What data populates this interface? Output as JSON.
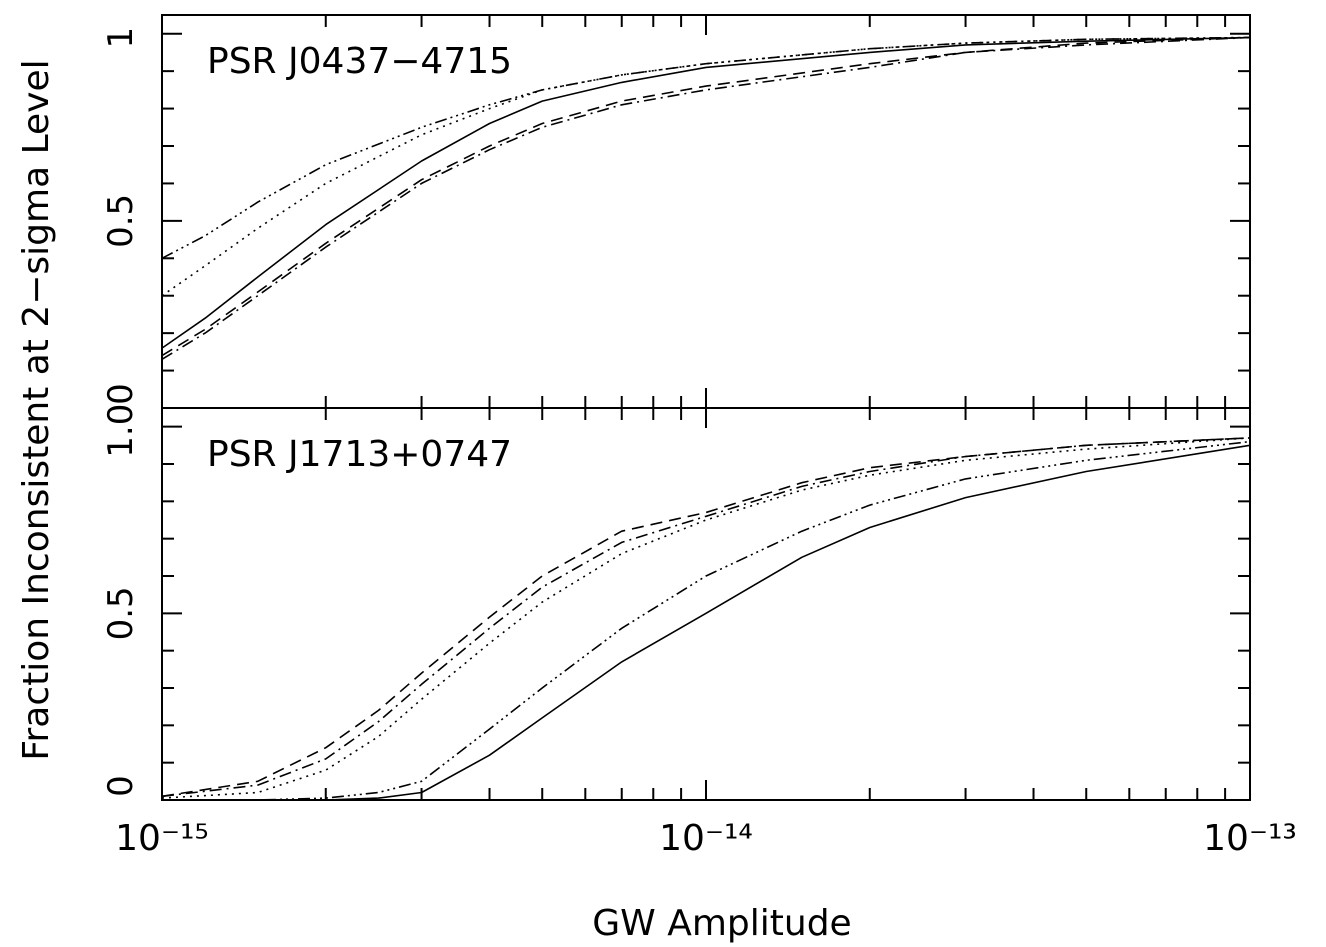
{
  "figure": {
    "xlabel": "GW Amplitude",
    "ylabel": "Fraction Inconsistent at 2−sigma Level"
  },
  "chart_data": [
    {
      "type": "line",
      "title": "PSR J0437−4715",
      "xscale": "log",
      "xlim": [
        1e-15,
        1e-13
      ],
      "ylim": [
        0,
        1.05
      ],
      "x_tick_labels": [
        "10⁻¹⁵",
        "10⁻¹⁴",
        "10⁻¹³"
      ],
      "y_tick_labels": [
        "0",
        "0.5",
        "1"
      ],
      "y_tick_values": [
        0,
        0.5,
        1
      ],
      "grid": false,
      "x": [
        1e-15,
        1.2e-15,
        1.5e-15,
        2e-15,
        3e-15,
        4e-15,
        5e-15,
        7e-15,
        1e-14,
        2e-14,
        3e-14,
        5e-14,
        1e-13
      ],
      "series": [
        {
          "style": "solid",
          "values": [
            0.16,
            0.24,
            0.35,
            0.49,
            0.66,
            0.76,
            0.82,
            0.87,
            0.91,
            0.95,
            0.97,
            0.98,
            0.99
          ]
        },
        {
          "style": "dotted",
          "values": [
            0.3,
            0.38,
            0.48,
            0.6,
            0.73,
            0.8,
            0.85,
            0.89,
            0.92,
            0.96,
            0.975,
            0.985,
            0.99
          ]
        },
        {
          "style": "dashed",
          "values": [
            0.14,
            0.21,
            0.31,
            0.44,
            0.61,
            0.7,
            0.76,
            0.82,
            0.86,
            0.92,
            0.95,
            0.975,
            0.99
          ]
        },
        {
          "style": "dashdot",
          "values": [
            0.13,
            0.2,
            0.3,
            0.43,
            0.6,
            0.69,
            0.75,
            0.81,
            0.85,
            0.91,
            0.95,
            0.97,
            0.99
          ]
        },
        {
          "style": "dashdot3",
          "values": [
            0.4,
            0.46,
            0.55,
            0.65,
            0.75,
            0.81,
            0.85,
            0.89,
            0.92,
            0.96,
            0.975,
            0.985,
            0.99
          ]
        }
      ]
    },
    {
      "type": "line",
      "title": "PSR J1713+0747",
      "xscale": "log",
      "xlim": [
        1e-15,
        1e-13
      ],
      "ylim": [
        0,
        1.05
      ],
      "x_tick_labels": [
        "10⁻¹⁵",
        "10⁻¹⁴",
        "10⁻¹³"
      ],
      "y_tick_labels": [
        "0",
        "0.5",
        "1.0"
      ],
      "y_tick_values": [
        0,
        0.5,
        1
      ],
      "grid": false,
      "x": [
        1e-15,
        1.5e-15,
        2e-15,
        2.5e-15,
        3e-15,
        4e-15,
        5e-15,
        7e-15,
        1e-14,
        1.5e-14,
        2e-14,
        3e-14,
        5e-14,
        1e-13
      ],
      "series": [
        {
          "style": "solid",
          "values": [
            0.0,
            0.0,
            0.0,
            0.005,
            0.02,
            0.12,
            0.22,
            0.37,
            0.5,
            0.65,
            0.73,
            0.81,
            0.88,
            0.95
          ]
        },
        {
          "style": "dotted",
          "values": [
            0.005,
            0.02,
            0.08,
            0.17,
            0.27,
            0.42,
            0.53,
            0.66,
            0.75,
            0.83,
            0.87,
            0.91,
            0.94,
            0.97
          ]
        },
        {
          "style": "dashed",
          "values": [
            0.01,
            0.05,
            0.14,
            0.24,
            0.34,
            0.49,
            0.6,
            0.72,
            0.77,
            0.85,
            0.89,
            0.92,
            0.95,
            0.97
          ]
        },
        {
          "style": "dashdot",
          "values": [
            0.01,
            0.04,
            0.11,
            0.21,
            0.31,
            0.46,
            0.57,
            0.69,
            0.76,
            0.84,
            0.88,
            0.92,
            0.95,
            0.97
          ]
        },
        {
          "style": "dashdot3",
          "values": [
            0.0,
            0.0,
            0.005,
            0.02,
            0.05,
            0.19,
            0.3,
            0.46,
            0.6,
            0.72,
            0.79,
            0.86,
            0.91,
            0.96
          ]
        }
      ]
    }
  ]
}
